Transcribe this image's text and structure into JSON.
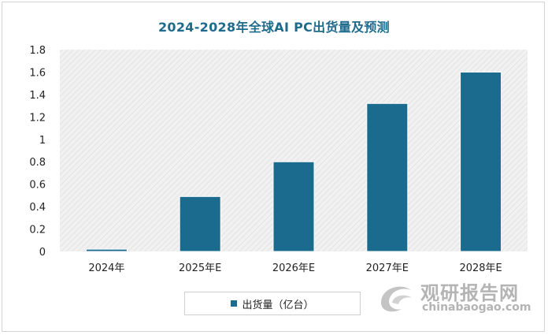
{
  "chart_data": {
    "type": "bar",
    "title": "2024-2028年全球AI PC出货量及预测",
    "categories": [
      "2024年",
      "2025年E",
      "2026年E",
      "2027年E",
      "2028年E"
    ],
    "series": [
      {
        "name": "出货量（亿台）",
        "values": [
          0.02,
          0.49,
          0.8,
          1.32,
          1.6
        ],
        "color": "#1b6b8f"
      }
    ],
    "yticks": [
      "0",
      "0.2",
      "0.4",
      "0.6",
      "0.8",
      "1",
      "1.2",
      "1.4",
      "1.6",
      "1.8"
    ],
    "ylim": [
      0,
      1.8
    ],
    "grid": false,
    "legend_position": "bottom",
    "plot_background": "hatched-light-gray"
  },
  "watermark": {
    "name_cn": "观研报告网",
    "name_en": "chinabaogao.com",
    "icon": "watermark-logo-icon"
  }
}
